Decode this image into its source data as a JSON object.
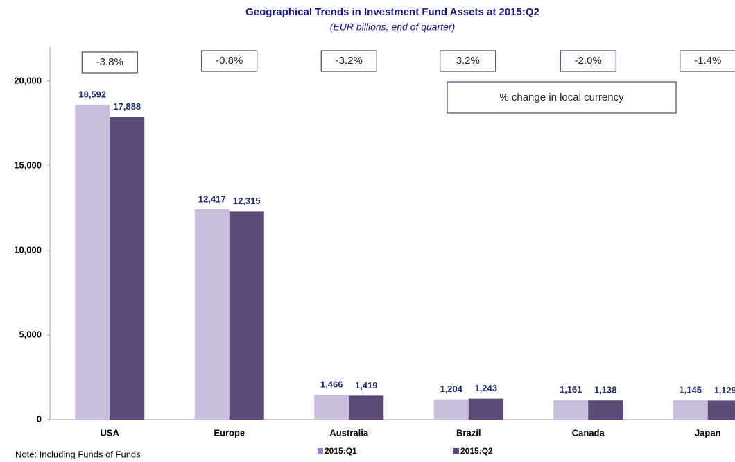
{
  "chart_data": {
    "type": "bar",
    "title": "Geographical Trends in Investment Fund Assets at 2015:Q2",
    "subtitle": "(EUR billions, end of quarter)",
    "categories": [
      "USA",
      "Europe",
      "Australia",
      "Brazil",
      "Canada",
      "Japan"
    ],
    "series": [
      {
        "name": "2015:Q1",
        "color": "#c9bfdc",
        "values": [
          18592,
          12417,
          1466,
          1204,
          1161,
          1145
        ],
        "value_labels": [
          "18,592",
          "12,417",
          "1,466",
          "1,204",
          "1,161",
          "1,145"
        ]
      },
      {
        "name": "2015:Q2",
        "color": "#5e4a7a",
        "values": [
          17888,
          12315,
          1419,
          1243,
          1138,
          1129
        ],
        "value_labels": [
          "17,888",
          "12,315",
          "1,419",
          "1,243",
          "1,138",
          "1,129"
        ]
      }
    ],
    "change_labels": [
      "-3.8%",
      "-0.8%",
      "-3.2%",
      "3.2%",
      "-2.0%",
      "-1.4%"
    ],
    "change_caption": "% change in local currency",
    "note": "Note: Including Funds of Funds",
    "ylim": [
      0,
      22000
    ],
    "yticks": [
      0,
      {
        "value": 5000,
        "label": "5,000"
      },
      {
        "value": 10000,
        "label": "10,000"
      },
      {
        "value": 15000,
        "label": "15,000"
      },
      {
        "value": 20000,
        "label": "20,000"
      }
    ],
    "grid": false,
    "legend": "bottom"
  }
}
